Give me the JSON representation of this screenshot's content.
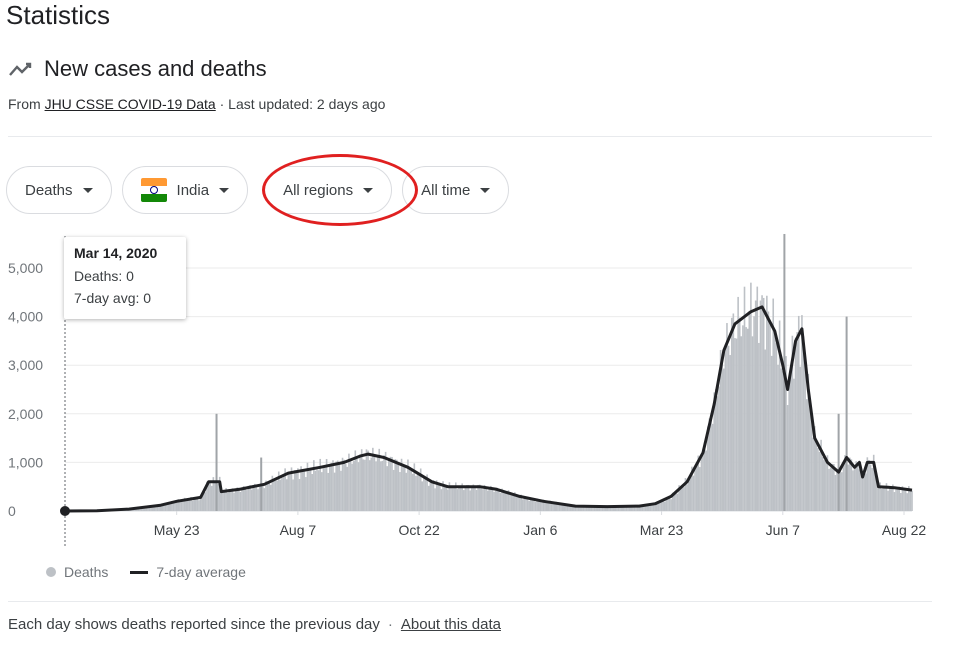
{
  "page": {
    "title": "Statistics"
  },
  "section": {
    "title": "New cases and deaths",
    "source_prefix": "From",
    "source_link": "JHU CSSE COVID-19 Data",
    "updated": "· Last updated: 2 days ago"
  },
  "filters": {
    "metric": "Deaths",
    "country": "India",
    "region": "All regions",
    "range": "All time"
  },
  "tooltip": {
    "date": "Mar 14, 2020",
    "deaths": "Deaths: 0",
    "avg": "7-day avg: 0"
  },
  "legend": {
    "bars": "Deaths",
    "line": "7-day average"
  },
  "footer": {
    "note": "Each day shows deaths reported since the previous day",
    "sep": "·",
    "about": "About this data"
  },
  "colors": {
    "bars": "#bdc1c6",
    "line": "#202124",
    "highlight": "#e02020"
  },
  "icons": {
    "trend": "trending-line-icon",
    "flag": "india-flag-icon",
    "caret": "caret-down-icon"
  },
  "chart_data": {
    "type": "bar",
    "xlabel": "",
    "ylabel": "",
    "ylim": [
      0,
      5000
    ],
    "yticks": [
      0,
      1000,
      2000,
      3000,
      4000,
      5000
    ],
    "ytick_labels": [
      "0",
      "1,000",
      "2,000",
      "3,000",
      "4,000",
      "5,000"
    ],
    "x_tick_labels": [
      "May 23",
      "Aug 7",
      "Oct 22",
      "Jan 6",
      "Mar 23",
      "Jun 7",
      "Aug 22"
    ],
    "x_tick_days": [
      70,
      146,
      222,
      298,
      374,
      450,
      526
    ],
    "x_range_days": [
      0,
      531
    ],
    "series": [
      {
        "name": "7-day average",
        "type": "line",
        "points": [
          [
            0,
            0
          ],
          [
            20,
            5
          ],
          [
            40,
            40
          ],
          [
            60,
            120
          ],
          [
            70,
            200
          ],
          [
            85,
            280
          ],
          [
            90,
            600
          ],
          [
            97,
            600
          ],
          [
            98,
            400
          ],
          [
            110,
            450
          ],
          [
            125,
            550
          ],
          [
            140,
            780
          ],
          [
            160,
            900
          ],
          [
            175,
            1000
          ],
          [
            185,
            1130
          ],
          [
            190,
            1170
          ],
          [
            200,
            1100
          ],
          [
            215,
            900
          ],
          [
            230,
            600
          ],
          [
            240,
            500
          ],
          [
            260,
            500
          ],
          [
            270,
            450
          ],
          [
            285,
            300
          ],
          [
            300,
            200
          ],
          [
            320,
            100
          ],
          [
            340,
            90
          ],
          [
            360,
            100
          ],
          [
            370,
            150
          ],
          [
            380,
            300
          ],
          [
            390,
            600
          ],
          [
            400,
            1200
          ],
          [
            407,
            2200
          ],
          [
            413,
            3300
          ],
          [
            420,
            3850
          ],
          [
            430,
            4100
          ],
          [
            437,
            4200
          ],
          [
            445,
            3700
          ],
          [
            450,
            3000
          ],
          [
            453,
            2500
          ],
          [
            458,
            3500
          ],
          [
            462,
            3750
          ],
          [
            466,
            2500
          ],
          [
            470,
            1500
          ],
          [
            478,
            1000
          ],
          [
            485,
            800
          ],
          [
            490,
            1100
          ],
          [
            495,
            900
          ],
          [
            498,
            1000
          ],
          [
            500,
            700
          ],
          [
            503,
            1000
          ],
          [
            507,
            1000
          ],
          [
            510,
            500
          ],
          [
            520,
            480
          ],
          [
            531,
            430
          ]
        ]
      },
      {
        "name": "Deaths",
        "type": "bar",
        "spikes": [
          [
            95,
            2000
          ],
          [
            123,
            1100
          ],
          [
            451,
            5700
          ],
          [
            485,
            2000
          ],
          [
            490,
            4000
          ]
        ]
      }
    ]
  }
}
